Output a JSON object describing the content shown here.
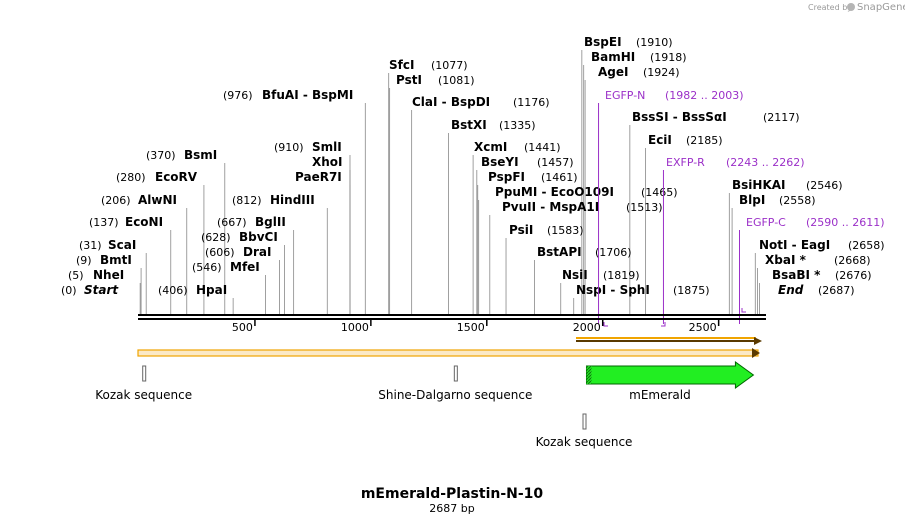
{
  "credit": {
    "prefix": "Created by",
    "brand": "SnapGene"
  },
  "title": "mEmerald-Plastin-N-10",
  "length_label": "2687 bp",
  "sequence_length": 2687,
  "ruler_ticks": [
    "500",
    "1000",
    "1500",
    "2000",
    "2500"
  ],
  "ruler_tick_values": [
    500,
    1000,
    1500,
    2000,
    2500
  ],
  "end_labels": {
    "start": "Start",
    "start_pos": "(0)",
    "end": "End",
    "end_pos": "(2687)"
  },
  "sites": [
    {
      "name": "NheI",
      "label": "NheI",
      "pos": "(5)",
      "loc": 5
    },
    {
      "name": "BmtI",
      "label": "BmtI",
      "pos": "(9)",
      "loc": 9
    },
    {
      "name": "ScaI",
      "label": "ScaI",
      "pos": "(31)",
      "loc": 31
    },
    {
      "name": "EcoNI",
      "label": "EcoNI",
      "pos": "(137)",
      "loc": 137
    },
    {
      "name": "AlwNI",
      "label": "AlwNI",
      "pos": "(206)",
      "loc": 206
    },
    {
      "name": "EcoRV",
      "label": "EcoRV",
      "pos": "(280)",
      "loc": 280
    },
    {
      "name": "BsmI",
      "label": "BsmI",
      "pos": "(370)",
      "loc": 370
    },
    {
      "name": "HpaI",
      "label": "HpaI",
      "pos": "(406)",
      "loc": 406
    },
    {
      "name": "MfeI",
      "label": "MfeI",
      "pos": "(546)",
      "loc": 546
    },
    {
      "name": "DraI",
      "label": "DraI",
      "pos": "(606)",
      "loc": 606
    },
    {
      "name": "BbvCI",
      "label": "BbvCI",
      "pos": "(628)",
      "loc": 628
    },
    {
      "name": "BglII",
      "label": "BglII",
      "pos": "(667)",
      "loc": 667
    },
    {
      "name": "HindIII",
      "label": "HindIII",
      "pos": "(812)",
      "loc": 812
    },
    {
      "name": "PaeR7I",
      "label": "PaeR7I",
      "pos": "",
      "loc": 910
    },
    {
      "name": "XhoI",
      "label": "XhoI",
      "pos": "",
      "loc": 910
    },
    {
      "name": "SmlI",
      "label": "SmlI",
      "pos": "(910)",
      "loc": 910
    },
    {
      "name": "BfuAI",
      "label": "BfuAI  -  BspMI",
      "pos": "(976)",
      "loc": 976
    },
    {
      "name": "SfcI",
      "label": "SfcI",
      "pos": "(1077)",
      "loc": 1077
    },
    {
      "name": "PstI",
      "label": "PstI",
      "pos": "(1081)",
      "loc": 1081
    },
    {
      "name": "ClaI",
      "label": "ClaI  -  BspDI",
      "pos": "(1176)",
      "loc": 1176
    },
    {
      "name": "BstXI",
      "label": "BstXI",
      "pos": "(1335)",
      "loc": 1335
    },
    {
      "name": "XcmI",
      "label": "XcmI",
      "pos": "(1441)",
      "loc": 1441
    },
    {
      "name": "BseYI",
      "label": "BseYI",
      "pos": "(1457)",
      "loc": 1457
    },
    {
      "name": "PspFI",
      "label": "PspFI",
      "pos": "(1461)",
      "loc": 1461
    },
    {
      "name": "PpuMI",
      "label": "PpuMI  -  EcoO109I",
      "pos": "(1465)",
      "loc": 1465
    },
    {
      "name": "PvuII",
      "label": "PvuII  -  MspA1I",
      "pos": "(1513)",
      "loc": 1513
    },
    {
      "name": "PsiI",
      "label": "PsiI",
      "pos": "(1583)",
      "loc": 1583
    },
    {
      "name": "BstAPI",
      "label": "BstAPI",
      "pos": "(1706)",
      "loc": 1706
    },
    {
      "name": "NsiI",
      "label": "NsiI",
      "pos": "(1819)",
      "loc": 1819
    },
    {
      "name": "NspI",
      "label": "NspI  -  SphI",
      "pos": "(1875)",
      "loc": 1875
    },
    {
      "name": "BspEI",
      "label": "BspEI",
      "pos": "(1910)",
      "loc": 1910
    },
    {
      "name": "BamHI",
      "label": "BamHI",
      "pos": "(1918)",
      "loc": 1918
    },
    {
      "name": "AgeI",
      "label": "AgeI",
      "pos": "(1924)",
      "loc": 1924
    },
    {
      "name": "BssSI",
      "label": "BssSI  -  BssSαI",
      "pos": "(2117)",
      "loc": 2117
    },
    {
      "name": "EciI",
      "label": "EciI",
      "pos": "(2185)",
      "loc": 2185
    },
    {
      "name": "BsiHKAI",
      "label": "BsiHKAI",
      "pos": "(2546)",
      "loc": 2546
    },
    {
      "name": "BlpI",
      "label": "BlpI",
      "pos": "(2558)",
      "loc": 2558
    },
    {
      "name": "NotI",
      "label": "NotI  -  EagI",
      "pos": "(2658)",
      "loc": 2658
    },
    {
      "name": "XbaI",
      "label": "XbaI *",
      "pos": "(2668)",
      "loc": 2668
    },
    {
      "name": "BsaBI",
      "label": "BsaBI *",
      "pos": "(2676)",
      "loc": 2676
    }
  ],
  "primers": [
    {
      "name": "EGFP-N",
      "range": "(1982 .. 2003)",
      "loc": 1982
    },
    {
      "name": "EXFP-R",
      "range": "(2243 .. 2262)",
      "loc": 2262
    },
    {
      "name": "EGFP-C",
      "range": "(2590 .. 2611)",
      "loc": 2590
    }
  ],
  "features": [
    {
      "name": "Kozak sequence",
      "start": 16,
      "end": 22
    },
    {
      "name": "Shine-Dalgarno sequence",
      "start": 1360,
      "end": 1366
    },
    {
      "name": "mEmerald",
      "start": 1930,
      "end": 2650
    },
    {
      "name": "Kozak sequence",
      "start": 1915,
      "end": 1921
    }
  ]
}
